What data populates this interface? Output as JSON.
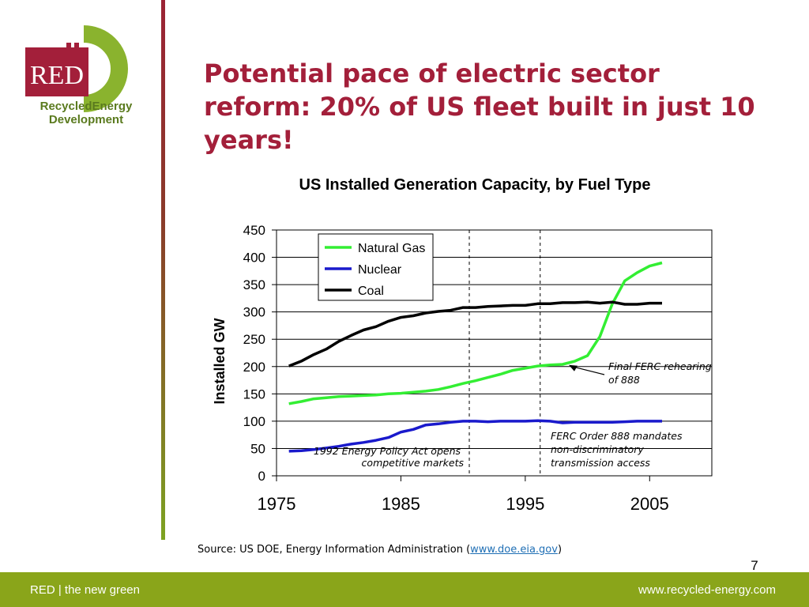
{
  "logo": {
    "mark": "RED",
    "line1": "RecycledEnergy",
    "line2": "Development",
    "colors": {
      "red": "#a31f3a",
      "green": "#7da322",
      "dark_green": "#5a7a1e"
    }
  },
  "slide": {
    "title": "Potential pace of electric sector reform: 20% of US fleet built in just 10 years!",
    "page_number": "7"
  },
  "source": {
    "prefix": "Source: US DOE, Energy Information Administration (",
    "link_text": "www.doe.eia.gov",
    "suffix": ")"
  },
  "footer": {
    "left": "RED | the new green",
    "right": "www.recycled-energy.com",
    "color": "#8aa51a"
  },
  "chart_data": {
    "type": "line",
    "title": "US Installed Generation Capacity, by Fuel Type",
    "xlabel": "",
    "ylabel": "Installed GW",
    "xlim": [
      1975,
      2010
    ],
    "ylim": [
      0,
      450
    ],
    "x_ticks": [
      1975,
      1985,
      1995,
      2005
    ],
    "y_ticks": [
      0,
      50,
      100,
      150,
      200,
      250,
      300,
      350,
      400,
      450
    ],
    "grid": "horizontal",
    "legend_position": "top-left",
    "series": [
      {
        "name": "Natural Gas",
        "color": "#33ee33",
        "points": [
          [
            1976,
            132
          ],
          [
            1977,
            136
          ],
          [
            1978,
            141
          ],
          [
            1979,
            143
          ],
          [
            1980,
            145
          ],
          [
            1981,
            146
          ],
          [
            1982,
            147
          ],
          [
            1983,
            148
          ],
          [
            1984,
            150
          ],
          [
            1985,
            151
          ],
          [
            1986,
            153
          ],
          [
            1987,
            155
          ],
          [
            1988,
            158
          ],
          [
            1989,
            163
          ],
          [
            1990,
            169
          ],
          [
            1991,
            174
          ],
          [
            1992,
            180
          ],
          [
            1993,
            186
          ],
          [
            1994,
            193
          ],
          [
            1995,
            197
          ],
          [
            1996,
            201
          ],
          [
            1997,
            203
          ],
          [
            1998,
            204
          ],
          [
            1999,
            210
          ],
          [
            2000,
            220
          ],
          [
            2001,
            255
          ],
          [
            2002,
            315
          ],
          [
            2003,
            357
          ],
          [
            2004,
            372
          ],
          [
            2005,
            384
          ],
          [
            2006,
            390
          ]
        ]
      },
      {
        "name": "Nuclear",
        "color": "#1a1acc",
        "points": [
          [
            1976,
            45
          ],
          [
            1977,
            46
          ],
          [
            1978,
            48
          ],
          [
            1979,
            51
          ],
          [
            1980,
            54
          ],
          [
            1981,
            58
          ],
          [
            1982,
            61
          ],
          [
            1983,
            65
          ],
          [
            1984,
            70
          ],
          [
            1985,
            80
          ],
          [
            1986,
            85
          ],
          [
            1987,
            93
          ],
          [
            1988,
            95
          ],
          [
            1989,
            98
          ],
          [
            1990,
            100
          ],
          [
            1991,
            100
          ],
          [
            1992,
            99
          ],
          [
            1993,
            100
          ],
          [
            1994,
            100
          ],
          [
            1995,
            100
          ],
          [
            1996,
            101
          ],
          [
            1997,
            100
          ],
          [
            1998,
            97
          ],
          [
            1999,
            98
          ],
          [
            2000,
            98
          ],
          [
            2001,
            98
          ],
          [
            2002,
            98
          ],
          [
            2003,
            99
          ],
          [
            2004,
            100
          ],
          [
            2005,
            100
          ],
          [
            2006,
            100
          ]
        ]
      },
      {
        "name": "Coal",
        "color": "#000000",
        "points": [
          [
            1976,
            201
          ],
          [
            1977,
            210
          ],
          [
            1978,
            222
          ],
          [
            1979,
            232
          ],
          [
            1980,
            246
          ],
          [
            1981,
            257
          ],
          [
            1982,
            267
          ],
          [
            1983,
            273
          ],
          [
            1984,
            283
          ],
          [
            1985,
            290
          ],
          [
            1986,
            293
          ],
          [
            1987,
            298
          ],
          [
            1988,
            301
          ],
          [
            1989,
            303
          ],
          [
            1990,
            308
          ],
          [
            1991,
            308
          ],
          [
            1992,
            310
          ],
          [
            1993,
            311
          ],
          [
            1994,
            312
          ],
          [
            1995,
            312
          ],
          [
            1996,
            315
          ],
          [
            1997,
            315
          ],
          [
            1998,
            317
          ],
          [
            1999,
            317
          ],
          [
            2000,
            318
          ],
          [
            2001,
            316
          ],
          [
            2002,
            318
          ],
          [
            2003,
            314
          ],
          [
            2004,
            314
          ],
          [
            2005,
            316
          ],
          [
            2006,
            316
          ]
        ]
      }
    ],
    "reference_lines": [
      {
        "x": 1990.5,
        "style": "dashed"
      },
      {
        "x": 1996.2,
        "style": "dashed"
      }
    ],
    "annotations": [
      {
        "text_lines": [
          "1992 Energy Policy Act opens",
          "competitive markets"
        ]
      },
      {
        "text_lines": [
          "FERC Order 888 mandates",
          "non-discriminatory",
          "transmission access"
        ]
      },
      {
        "text_lines": [
          "Final FERC rehearing",
          "of 888"
        ],
        "arrow_to": [
          1998.5,
          203
        ]
      }
    ]
  }
}
